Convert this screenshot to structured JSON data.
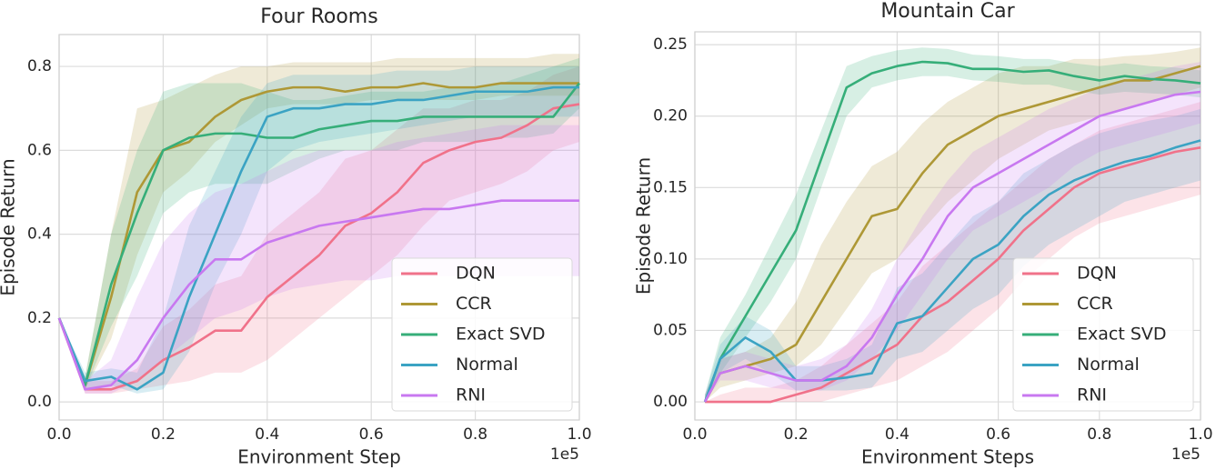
{
  "chart_data": [
    {
      "type": "line",
      "title": "Four Rooms",
      "xlabel": "Environment Step",
      "ylabel": "Episode Return",
      "x_offset_label": "1e5",
      "grid": true,
      "legend": "lower right",
      "xlim": [
        0,
        1
      ],
      "ylim": [
        -0.043,
        0.876
      ],
      "xticks": [
        {
          "value": 0,
          "label": "0.0"
        },
        0.2,
        0.4,
        0.6,
        0.8,
        {
          "value": 1,
          "label": "1.0"
        }
      ],
      "yticks": [
        {
          "value": 0,
          "label": "0.0"
        },
        0.2,
        0.4,
        0.6,
        0.8
      ],
      "x": [
        0,
        0.05,
        0.1,
        0.15,
        0.2,
        0.25,
        0.3,
        0.35,
        0.4,
        0.45,
        0.5,
        0.55,
        0.6,
        0.65,
        0.7,
        0.75,
        0.8,
        0.85,
        0.9,
        0.95,
        1.0
      ],
      "series": [
        {
          "name": "DQN",
          "color": "#f0728a",
          "values": [
            0.2,
            0.03,
            0.03,
            0.05,
            0.1,
            0.13,
            0.17,
            0.17,
            0.25,
            0.3,
            0.35,
            0.42,
            0.45,
            0.5,
            0.57,
            0.6,
            0.62,
            0.63,
            0.66,
            0.7,
            0.71
          ],
          "lower": [
            0.2,
            0.02,
            0.02,
            0.03,
            0.04,
            0.05,
            0.07,
            0.07,
            0.1,
            0.15,
            0.2,
            0.25,
            0.3,
            0.35,
            0.42,
            0.48,
            0.5,
            0.52,
            0.55,
            0.6,
            0.62
          ],
          "upper": [
            0.2,
            0.05,
            0.05,
            0.08,
            0.18,
            0.22,
            0.28,
            0.3,
            0.4,
            0.45,
            0.5,
            0.58,
            0.6,
            0.65,
            0.7,
            0.7,
            0.72,
            0.72,
            0.74,
            0.78,
            0.8
          ]
        },
        {
          "name": "CCR",
          "color": "#ae9836",
          "values": [
            0.2,
            0.04,
            0.25,
            0.5,
            0.6,
            0.62,
            0.68,
            0.72,
            0.74,
            0.75,
            0.75,
            0.74,
            0.75,
            0.75,
            0.76,
            0.75,
            0.75,
            0.76,
            0.76,
            0.76,
            0.76
          ],
          "lower": [
            0.2,
            0.03,
            0.15,
            0.35,
            0.5,
            0.55,
            0.62,
            0.66,
            0.7,
            0.71,
            0.71,
            0.71,
            0.72,
            0.72,
            0.72,
            0.72,
            0.72,
            0.73,
            0.73,
            0.73,
            0.73
          ],
          "upper": [
            0.2,
            0.06,
            0.4,
            0.7,
            0.72,
            0.75,
            0.78,
            0.8,
            0.8,
            0.81,
            0.81,
            0.81,
            0.81,
            0.82,
            0.82,
            0.82,
            0.82,
            0.82,
            0.82,
            0.83,
            0.83
          ]
        },
        {
          "name": "Exact SVD",
          "color": "#36ae79",
          "values": [
            0.2,
            0.04,
            0.28,
            0.45,
            0.6,
            0.63,
            0.64,
            0.64,
            0.63,
            0.63,
            0.65,
            0.66,
            0.67,
            0.67,
            0.68,
            0.68,
            0.68,
            0.68,
            0.68,
            0.68,
            0.76
          ],
          "lower": [
            0.2,
            0.03,
            0.18,
            0.3,
            0.45,
            0.5,
            0.52,
            0.52,
            0.52,
            0.55,
            0.58,
            0.6,
            0.6,
            0.6,
            0.62,
            0.62,
            0.62,
            0.63,
            0.63,
            0.64,
            0.7
          ],
          "upper": [
            0.2,
            0.06,
            0.4,
            0.6,
            0.74,
            0.76,
            0.76,
            0.76,
            0.74,
            0.72,
            0.72,
            0.73,
            0.74,
            0.74,
            0.74,
            0.75,
            0.75,
            0.76,
            0.78,
            0.8,
            0.82
          ]
        },
        {
          "name": "Normal",
          "color": "#3ba3c3",
          "values": [
            0.2,
            0.05,
            0.06,
            0.03,
            0.07,
            0.25,
            0.4,
            0.55,
            0.68,
            0.7,
            0.7,
            0.71,
            0.71,
            0.72,
            0.72,
            0.73,
            0.74,
            0.74,
            0.74,
            0.75,
            0.75
          ],
          "lower": [
            0.2,
            0.03,
            0.04,
            0.02,
            0.03,
            0.12,
            0.28,
            0.4,
            0.55,
            0.6,
            0.62,
            0.63,
            0.64,
            0.65,
            0.66,
            0.67,
            0.68,
            0.68,
            0.68,
            0.68,
            0.68
          ],
          "upper": [
            0.2,
            0.07,
            0.08,
            0.07,
            0.2,
            0.42,
            0.55,
            0.68,
            0.76,
            0.78,
            0.78,
            0.78,
            0.78,
            0.79,
            0.79,
            0.79,
            0.8,
            0.8,
            0.8,
            0.8,
            0.8
          ]
        },
        {
          "name": "RNI",
          "color": "#c878f0",
          "values": [
            0.2,
            0.03,
            0.04,
            0.1,
            0.2,
            0.28,
            0.34,
            0.34,
            0.38,
            0.4,
            0.42,
            0.43,
            0.44,
            0.45,
            0.46,
            0.46,
            0.47,
            0.48,
            0.48,
            0.48,
            0.48
          ],
          "lower": [
            0.2,
            0.02,
            0.02,
            0.05,
            0.1,
            0.15,
            0.2,
            0.22,
            0.25,
            0.27,
            0.28,
            0.29,
            0.29,
            0.3,
            0.3,
            0.3,
            0.3,
            0.3,
            0.3,
            0.3,
            0.3
          ],
          "upper": [
            0.2,
            0.05,
            0.1,
            0.25,
            0.38,
            0.45,
            0.5,
            0.52,
            0.55,
            0.58,
            0.6,
            0.6,
            0.6,
            0.62,
            0.63,
            0.64,
            0.65,
            0.66,
            0.66,
            0.66,
            0.66
          ]
        }
      ]
    },
    {
      "type": "line",
      "title": "Mountain Car",
      "xlabel": "Environment Steps",
      "ylabel": "Episode Return",
      "x_offset_label": "1e5",
      "grid": true,
      "legend": "lower right",
      "xlim": [
        0,
        1
      ],
      "ylim": [
        -0.0127,
        0.259
      ],
      "xticks": [
        {
          "value": 0,
          "label": "0.0"
        },
        0.2,
        0.4,
        0.6,
        0.8,
        {
          "value": 1,
          "label": "1.0"
        }
      ],
      "yticks": [
        {
          "value": 0,
          "label": "0.00"
        },
        0.05,
        {
          "value": 0.1,
          "label": "0.10"
        },
        0.15,
        {
          "value": 0.2,
          "label": "0.20"
        },
        0.25
      ],
      "x": [
        0.02,
        0.05,
        0.1,
        0.15,
        0.2,
        0.25,
        0.3,
        0.35,
        0.4,
        0.45,
        0.5,
        0.55,
        0.6,
        0.65,
        0.7,
        0.75,
        0.8,
        0.85,
        0.9,
        0.95,
        1.0
      ],
      "series": [
        {
          "name": "DQN",
          "color": "#f0728a",
          "values": [
            0,
            0,
            0,
            0,
            0.005,
            0.01,
            0.02,
            0.03,
            0.04,
            0.06,
            0.07,
            0.085,
            0.1,
            0.12,
            0.135,
            0.15,
            0.16,
            0.165,
            0.17,
            0.175,
            0.178
          ],
          "lower": [
            0,
            0,
            0,
            0,
            0,
            0,
            0.005,
            0.01,
            0.015,
            0.025,
            0.035,
            0.05,
            0.065,
            0.085,
            0.1,
            0.115,
            0.125,
            0.13,
            0.135,
            0.14,
            0.145
          ],
          "upper": [
            0,
            0.005,
            0.01,
            0.01,
            0.015,
            0.025,
            0.04,
            0.055,
            0.07,
            0.095,
            0.11,
            0.125,
            0.14,
            0.155,
            0.17,
            0.18,
            0.19,
            0.195,
            0.2,
            0.205,
            0.21
          ]
        },
        {
          "name": "CCR",
          "color": "#ae9836",
          "values": [
            0,
            0.02,
            0.025,
            0.03,
            0.04,
            0.07,
            0.1,
            0.13,
            0.135,
            0.16,
            0.18,
            0.19,
            0.2,
            0.205,
            0.21,
            0.215,
            0.22,
            0.225,
            0.225,
            0.23,
            0.235
          ],
          "lower": [
            0,
            0.01,
            0.015,
            0.02,
            0.025,
            0.04,
            0.065,
            0.09,
            0.1,
            0.12,
            0.14,
            0.155,
            0.17,
            0.18,
            0.19,
            0.195,
            0.2,
            0.205,
            0.21,
            0.215,
            0.22
          ],
          "upper": [
            0.005,
            0.03,
            0.035,
            0.045,
            0.07,
            0.11,
            0.14,
            0.165,
            0.175,
            0.195,
            0.21,
            0.22,
            0.23,
            0.235,
            0.235,
            0.24,
            0.24,
            0.242,
            0.243,
            0.245,
            0.248
          ]
        },
        {
          "name": "Exact SVD",
          "color": "#36ae79",
          "values": [
            0,
            0.03,
            0.06,
            0.09,
            0.12,
            0.17,
            0.22,
            0.23,
            0.235,
            0.238,
            0.237,
            0.233,
            0.233,
            0.231,
            0.232,
            0.228,
            0.225,
            0.228,
            0.226,
            0.225,
            0.223
          ],
          "lower": [
            0,
            0.02,
            0.045,
            0.07,
            0.1,
            0.15,
            0.2,
            0.22,
            0.225,
            0.228,
            0.228,
            0.225,
            0.224,
            0.222,
            0.222,
            0.218,
            0.215,
            0.217,
            0.216,
            0.215,
            0.213
          ],
          "upper": [
            0.005,
            0.045,
            0.075,
            0.11,
            0.145,
            0.19,
            0.235,
            0.242,
            0.246,
            0.248,
            0.247,
            0.243,
            0.242,
            0.24,
            0.24,
            0.237,
            0.235,
            0.237,
            0.235,
            0.234,
            0.232
          ]
        },
        {
          "name": "Normal",
          "color": "#3ba3c3",
          "values": [
            0,
            0.03,
            0.045,
            0.035,
            0.015,
            0.015,
            0.017,
            0.02,
            0.055,
            0.06,
            0.08,
            0.1,
            0.11,
            0.13,
            0.145,
            0.155,
            0.162,
            0.168,
            0.172,
            0.178,
            0.183
          ],
          "lower": [
            0,
            0.02,
            0.03,
            0.02,
            0.008,
            0.008,
            0.008,
            0.01,
            0.03,
            0.035,
            0.05,
            0.065,
            0.075,
            0.095,
            0.11,
            0.12,
            0.13,
            0.14,
            0.145,
            0.15,
            0.155
          ],
          "upper": [
            0.005,
            0.04,
            0.06,
            0.05,
            0.025,
            0.025,
            0.03,
            0.04,
            0.08,
            0.09,
            0.11,
            0.13,
            0.14,
            0.16,
            0.17,
            0.18,
            0.188,
            0.193,
            0.197,
            0.2,
            0.205
          ]
        },
        {
          "name": "RNI",
          "color": "#c878f0",
          "values": [
            0,
            0.02,
            0.025,
            0.02,
            0.015,
            0.015,
            0.025,
            0.045,
            0.075,
            0.1,
            0.13,
            0.15,
            0.16,
            0.17,
            0.18,
            0.19,
            0.2,
            0.205,
            0.21,
            0.215,
            0.217
          ],
          "lower": [
            0,
            0.015,
            0.015,
            0.01,
            0.008,
            0.008,
            0.015,
            0.03,
            0.05,
            0.075,
            0.1,
            0.12,
            0.13,
            0.14,
            0.15,
            0.165,
            0.175,
            0.18,
            0.185,
            0.19,
            0.195
          ],
          "upper": [
            0.005,
            0.03,
            0.035,
            0.03,
            0.025,
            0.03,
            0.04,
            0.065,
            0.1,
            0.13,
            0.155,
            0.175,
            0.185,
            0.195,
            0.205,
            0.212,
            0.22,
            0.225,
            0.23,
            0.235,
            0.238
          ]
        }
      ]
    }
  ]
}
